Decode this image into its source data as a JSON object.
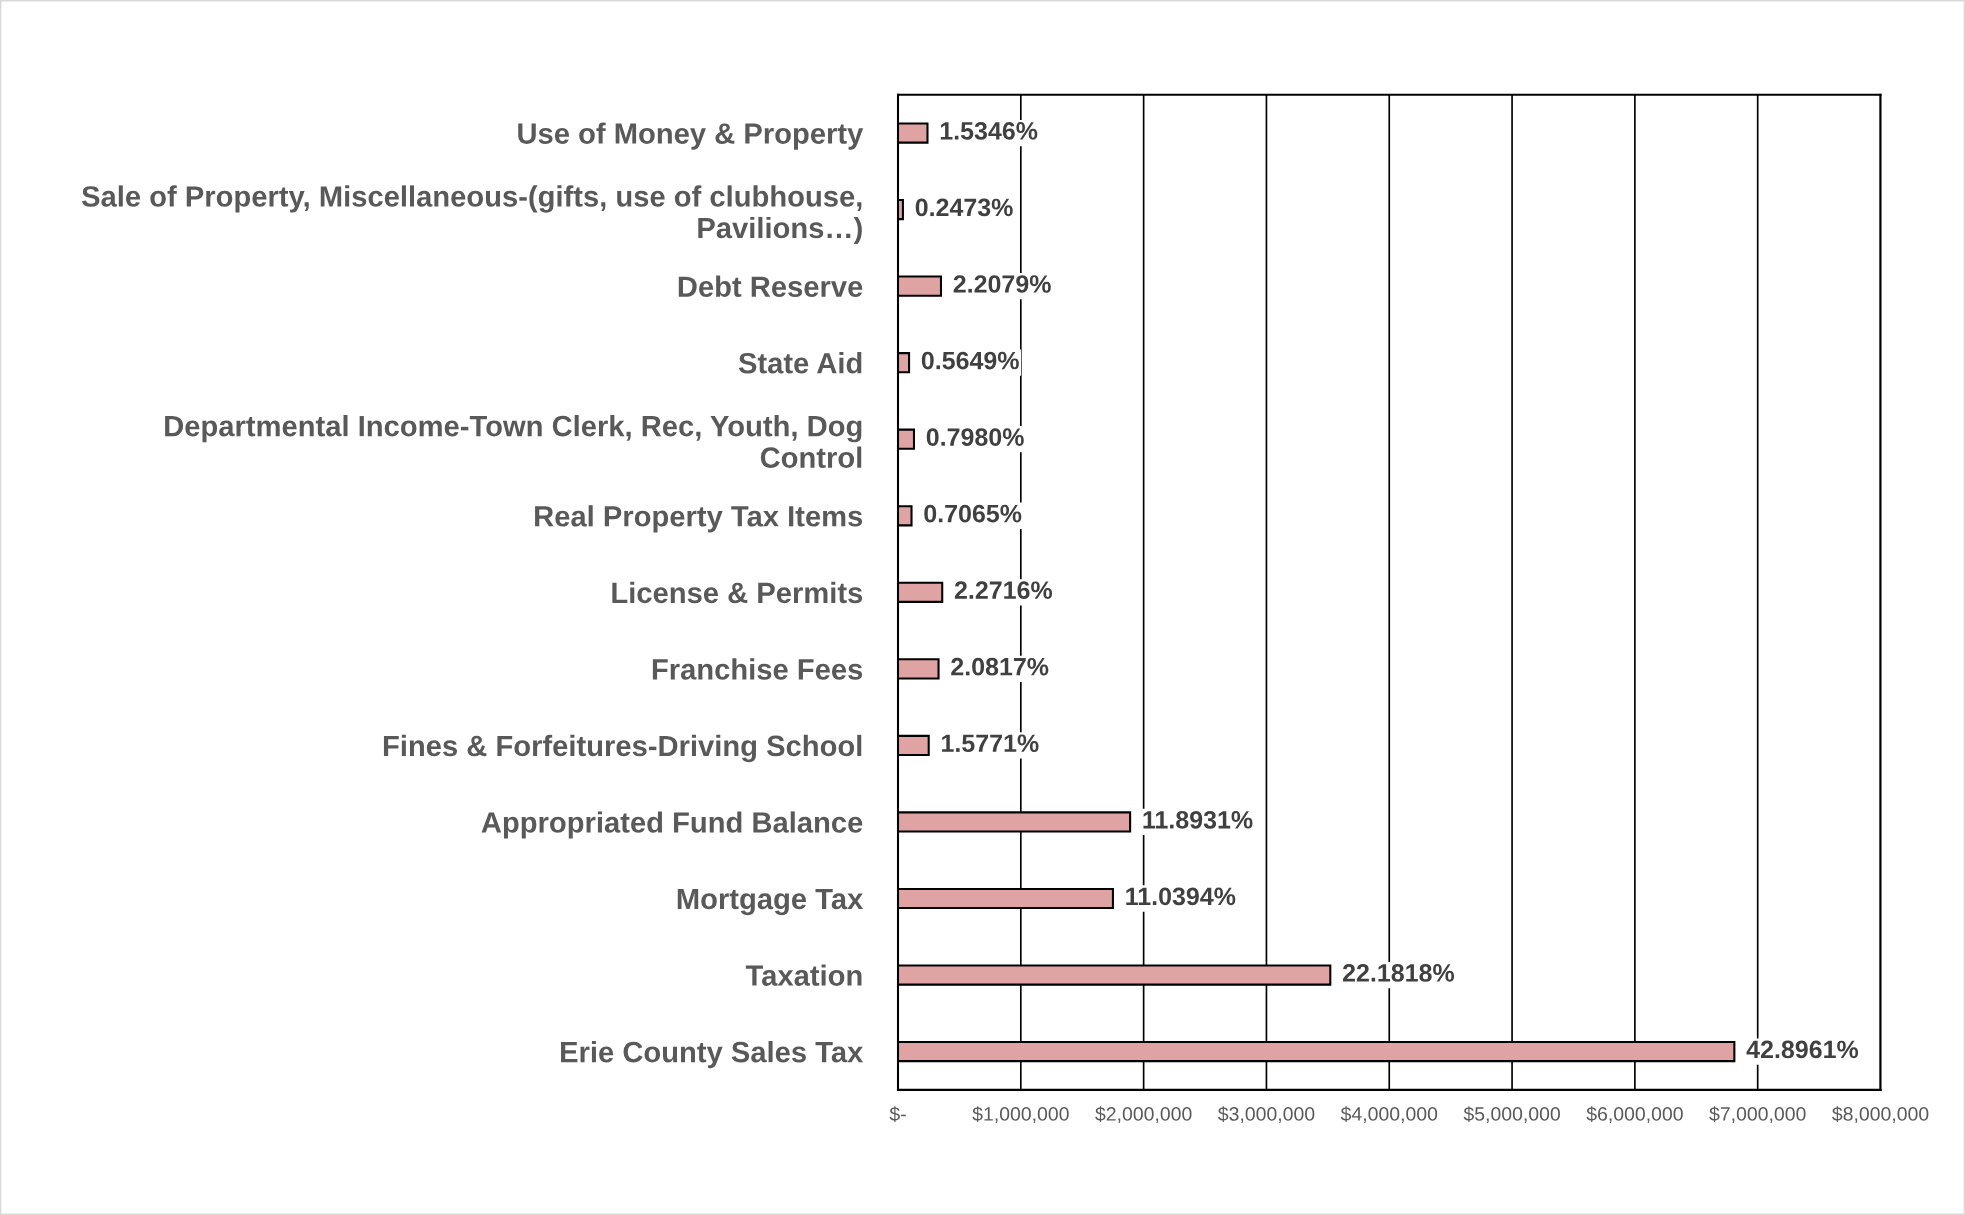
{
  "chart_data": {
    "type": "bar",
    "orientation": "horizontal",
    "categories": [
      "Use of Money & Property",
      "Sale of Property, Miscellaneous-(gifts, use of clubhouse,\nPavilions…)",
      "Debt Reserve",
      "State Aid",
      "Departmental Income-Town Clerk, Rec, Youth, Dog\nControl",
      "Real Property Tax Items",
      "License & Permits",
      "Franchise Fees",
      "Fines & Forfeitures-Driving School",
      "Appropriated Fund Balance",
      "Mortgage Tax",
      "Taxation",
      "Erie County Sales Tax"
    ],
    "values": [
      240000,
      40000,
      350000,
      90000,
      130000,
      110000,
      360000,
      330000,
      250000,
      1890000,
      1750000,
      3520000,
      6810000
    ],
    "color": "#dfa3a3",
    "annotations": [
      {
        "text": "1.5346%",
        "x": 240000,
        "y": "Use of Money & Property"
      },
      {
        "text": "0.2473%",
        "x": 40000,
        "y": "Sale of Property, Miscellaneous-(gifts, use of clubhouse,\nPavilions…)"
      },
      {
        "text": "2.2079%",
        "x": 350000,
        "y": "Debt Reserve"
      },
      {
        "text": "0.5649%",
        "x": 90000,
        "y": "State Aid"
      },
      {
        "text": "0.7980%",
        "x": 130000,
        "y": "Departmental Income-Town Clerk, Rec, Youth, Dog\nControl"
      },
      {
        "text": "0.7065%",
        "x": 110000,
        "y": "Real Property Tax Items"
      },
      {
        "text": "2.2716%",
        "x": 360000,
        "y": "License & Permits"
      },
      {
        "text": "2.0817%",
        "x": 330000,
        "y": "Franchise Fees"
      },
      {
        "text": "1.5771%",
        "x": 250000,
        "y": "Fines & Forfeitures-Driving School"
      },
      {
        "text": "11.8931%",
        "x": 1890000,
        "y": "Appropriated Fund Balance"
      },
      {
        "text": "11.0394%",
        "x": 1750000,
        "y": "Mortgage Tax"
      },
      {
        "text": "22.1818%",
        "x": 3520000,
        "y": "Taxation"
      },
      {
        "text": "42.8961%",
        "x": 6810000,
        "y": "Erie County Sales Tax"
      }
    ],
    "xlim": [
      0,
      8000000
    ],
    "xticks": [
      {
        "value": 0,
        "label": "$-"
      },
      {
        "value": 1000000,
        "label": "$1,000,000"
      },
      {
        "value": 2000000,
        "label": "$2,000,000"
      },
      {
        "value": 3000000,
        "label": "$3,000,000"
      },
      {
        "value": 4000000,
        "label": "$4,000,000"
      },
      {
        "value": 5000000,
        "label": "$5,000,000"
      },
      {
        "value": 6000000,
        "label": "$6,000,000"
      },
      {
        "value": 7000000,
        "label": "$7,000,000"
      },
      {
        "value": 8000000,
        "label": "$8,000,000"
      }
    ],
    "grid": "x",
    "legend": false
  }
}
